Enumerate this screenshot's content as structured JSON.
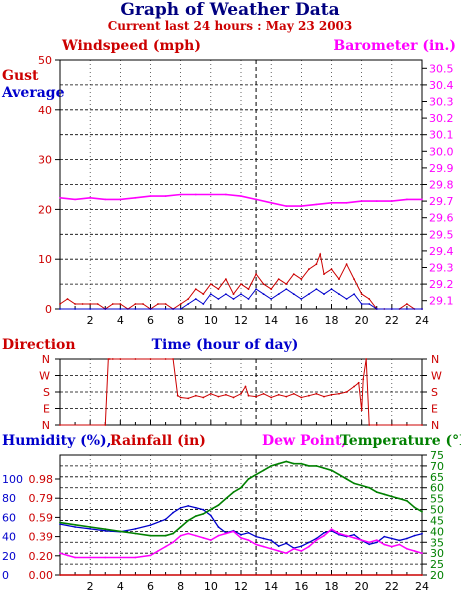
{
  "title": "Graph of Weather Data",
  "subtitle": "Current last 24 hours : May 23 2003",
  "colors": {
    "title": "#000080",
    "red": "#cc0000",
    "blue": "#0000cc",
    "magenta": "#ff00ff",
    "green": "#008000",
    "axis": "#000000"
  },
  "chart_data": [
    {
      "type": "line",
      "label_left": "Windspeed (mph)",
      "label_right": "Barometer (in.)",
      "xlabel": "Time (hour of day)",
      "legend": [
        "Gust",
        "Average"
      ],
      "xlim": [
        0,
        24
      ],
      "x_ticks": [
        "2",
        "4",
        "6",
        "8",
        "10",
        "12",
        "14",
        "16",
        "18",
        "20",
        "22",
        "24"
      ],
      "ylim_left": [
        0,
        50
      ],
      "y_ticks_left": [
        "0",
        "10",
        "20",
        "30",
        "40",
        "50"
      ],
      "ylim_right": [
        29.05,
        30.55
      ],
      "y_ticks_right": [
        "29.1",
        "29.2",
        "29.3",
        "29.4",
        "29.5",
        "29.6",
        "29.7",
        "29.8",
        "29.9",
        "30.0",
        "30.1",
        "30.2",
        "30.3",
        "30.4",
        "30.5"
      ],
      "series": [
        {
          "name": "Gust",
          "axis": "left",
          "color": "#cc0000",
          "x": [
            0,
            0.5,
            1,
            1.5,
            2,
            2.5,
            3,
            3.5,
            4,
            4.5,
            5,
            5.5,
            6,
            6.5,
            7,
            7.5,
            8,
            8.5,
            9,
            9.5,
            10,
            10.5,
            11,
            11.5,
            12,
            12.5,
            13,
            13.5,
            14,
            14.5,
            15,
            15.5,
            16,
            16.5,
            17,
            17.25,
            17.5,
            18,
            18.5,
            19,
            19.5,
            20,
            20.5,
            21,
            21.5,
            22,
            22.5,
            23,
            23.5,
            24
          ],
          "y": [
            1,
            2,
            1,
            1,
            1,
            1,
            0,
            1,
            1,
            0,
            1,
            1,
            0,
            1,
            1,
            0,
            1,
            2,
            4,
            3,
            5,
            4,
            6,
            3,
            5,
            4,
            7,
            5,
            4,
            6,
            5,
            7,
            6,
            8,
            9,
            11,
            7,
            8,
            6,
            9,
            6,
            3,
            2,
            0,
            0,
            0,
            0,
            1,
            0,
            0
          ]
        },
        {
          "name": "Average",
          "axis": "left",
          "color": "#0000cc",
          "x": [
            0,
            1,
            2,
            3,
            4,
            5,
            6,
            7,
            7.5,
            8,
            8.5,
            9,
            9.5,
            10,
            10.5,
            11,
            11.5,
            12,
            12.5,
            13,
            13.5,
            14,
            14.5,
            15,
            15.5,
            16,
            16.5,
            17,
            17.5,
            18,
            18.5,
            19,
            19.5,
            20,
            20.5,
            21,
            22,
            23,
            24
          ],
          "y": [
            0,
            0,
            0,
            0,
            0,
            0,
            0,
            0,
            0,
            0,
            1,
            2,
            1,
            3,
            2,
            3,
            2,
            3,
            2,
            4,
            3,
            2,
            3,
            4,
            3,
            2,
            3,
            4,
            3,
            4,
            3,
            2,
            3,
            1,
            1,
            0,
            0,
            0,
            0
          ]
        },
        {
          "name": "Barometer",
          "axis": "right",
          "color": "#ff00ff",
          "x": [
            0,
            1,
            2,
            3,
            4,
            5,
            6,
            7,
            8,
            9,
            10,
            11,
            12,
            13,
            14,
            15,
            16,
            17,
            18,
            19,
            20,
            21,
            22,
            23,
            24
          ],
          "y": [
            29.72,
            29.71,
            29.72,
            29.71,
            29.71,
            29.72,
            29.73,
            29.73,
            29.74,
            29.74,
            29.74,
            29.74,
            29.73,
            29.71,
            29.69,
            29.67,
            29.67,
            29.68,
            29.69,
            29.69,
            29.7,
            29.7,
            29.7,
            29.71,
            29.71
          ]
        }
      ]
    },
    {
      "type": "line",
      "label_left": "Direction",
      "xlim": [
        0,
        24
      ],
      "y_ticks": [
        "N",
        "W",
        "S",
        "E",
        "N"
      ],
      "ylim": [
        0,
        360
      ],
      "series": [
        {
          "name": "Direction",
          "color": "#cc0000",
          "x": [
            0,
            3.0,
            3.2,
            3.3,
            3.5,
            4,
            5,
            6,
            7,
            7.5,
            7.8,
            8,
            8.5,
            9,
            9.5,
            10,
            10.5,
            11,
            11.5,
            12,
            12.3,
            12.5,
            13,
            13.5,
            14,
            14.5,
            15,
            15.5,
            16,
            16.5,
            17,
            17.5,
            18,
            18.5,
            19,
            19.5,
            19.8,
            20,
            20.1,
            20.3,
            20.5,
            21,
            22,
            23,
            24
          ],
          "y": [
            0,
            0,
            360,
            360,
            360,
            360,
            360,
            360,
            360,
            360,
            160,
            150,
            145,
            160,
            150,
            170,
            155,
            165,
            150,
            170,
            210,
            160,
            155,
            170,
            150,
            165,
            155,
            170,
            150,
            160,
            170,
            155,
            165,
            170,
            180,
            210,
            230,
            80,
            250,
            360,
            0,
            0,
            0,
            0,
            0
          ]
        }
      ]
    },
    {
      "type": "line",
      "label_humidity": "Humidity (%),",
      "label_rainfall": "Rainfall (in)",
      "label_dewpoint": "Dew Point,",
      "label_temperature": "Temperature (°F)",
      "xlim": [
        0,
        24
      ],
      "y_ticks_humidity": [
        "0",
        "20",
        "40",
        "60",
        "80",
        "100"
      ],
      "y_ticks_rainfall": [
        "0.00",
        "0.20",
        "0.39",
        "0.59",
        "0.79",
        "0.98"
      ],
      "ylim_humidity": [
        0,
        125
      ],
      "ylim_temp": [
        20,
        75
      ],
      "y_ticks_temp": [
        "20",
        "25",
        "30",
        "35",
        "40",
        "45",
        "50",
        "55",
        "60",
        "65",
        "70",
        "75"
      ],
      "series": [
        {
          "name": "Humidity",
          "axis": "left",
          "color": "#0000cc",
          "x": [
            0,
            1,
            2,
            3,
            4,
            5,
            6,
            7,
            7.5,
            8,
            8.5,
            9,
            9.5,
            10,
            10.5,
            11,
            11.5,
            12,
            12.5,
            13,
            13.5,
            14,
            14.5,
            15,
            15.5,
            16,
            16.5,
            17,
            17.5,
            18,
            18.5,
            19,
            19.5,
            20,
            20.5,
            21,
            21.5,
            22,
            22.5,
            23,
            23.5,
            24
          ],
          "y": [
            53,
            50,
            48,
            46,
            45,
            48,
            52,
            58,
            65,
            70,
            72,
            70,
            68,
            62,
            50,
            44,
            46,
            42,
            44,
            40,
            38,
            36,
            30,
            33,
            28,
            30,
            34,
            38,
            44,
            46,
            42,
            40,
            42,
            36,
            32,
            34,
            40,
            38,
            36,
            38,
            41,
            43
          ]
        },
        {
          "name": "Dew Point",
          "axis": "temp",
          "color": "#ff00ff",
          "x": [
            0,
            0.5,
            1,
            2,
            3,
            4,
            5,
            6,
            6.5,
            7,
            7.5,
            8,
            8.5,
            9,
            9.5,
            10,
            10.5,
            11,
            11.5,
            12,
            12.5,
            13,
            13.5,
            14,
            14.5,
            15,
            15.5,
            16,
            16.5,
            17,
            17.5,
            18,
            18.5,
            19,
            19.5,
            20,
            20.5,
            21,
            21.5,
            22,
            22.5,
            23,
            23.5,
            24
          ],
          "y": [
            30,
            29,
            28,
            28,
            28,
            28,
            28,
            29,
            31,
            33,
            35,
            38,
            39,
            38,
            37,
            36,
            38,
            39,
            40,
            37,
            36,
            34,
            33,
            32,
            31,
            30,
            32,
            31,
            33,
            36,
            38,
            41,
            39,
            38,
            37,
            36,
            35,
            36,
            34,
            33,
            34,
            32,
            31,
            30
          ]
        },
        {
          "name": "Temperature",
          "axis": "temp",
          "color": "#008000",
          "x": [
            0,
            1,
            2,
            3,
            4,
            5,
            6,
            7,
            7.5,
            8,
            8.5,
            9,
            9.5,
            10,
            10.5,
            11,
            11.5,
            12,
            12.5,
            13,
            13.5,
            14,
            14.5,
            15,
            15.5,
            16,
            16.5,
            17,
            17.5,
            18,
            18.5,
            19,
            19.5,
            20,
            20.5,
            21,
            21.5,
            22,
            22.5,
            23,
            23.5,
            24
          ],
          "y": [
            44,
            43,
            42,
            41,
            40,
            39,
            38,
            38,
            39,
            42,
            45,
            47,
            48,
            50,
            52,
            55,
            58,
            60,
            64,
            66,
            68,
            70,
            71,
            72,
            71,
            71,
            70,
            70,
            69,
            68,
            66,
            64,
            62,
            61,
            60,
            58,
            57,
            56,
            55,
            54,
            51,
            49
          ]
        },
        {
          "name": "Rainfall",
          "axis": "left",
          "color": "#cc0000",
          "x": [
            0,
            24
          ],
          "y": [
            0,
            0
          ]
        }
      ]
    }
  ]
}
